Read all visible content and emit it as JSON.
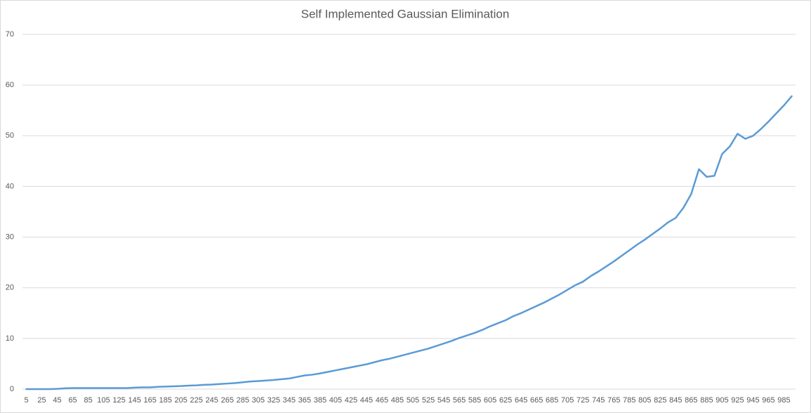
{
  "chart_data": {
    "type": "line",
    "title": "Self Implemented Gaussian Elimination",
    "categories": [
      5,
      null,
      25,
      null,
      45,
      null,
      65,
      null,
      85,
      null,
      105,
      null,
      125,
      null,
      145,
      null,
      165,
      null,
      185,
      null,
      205,
      null,
      225,
      null,
      245,
      null,
      265,
      null,
      285,
      null,
      305,
      null,
      325,
      null,
      345,
      null,
      365,
      null,
      385,
      null,
      405,
      null,
      425,
      null,
      445,
      null,
      465,
      null,
      485,
      null,
      505,
      null,
      525,
      null,
      545,
      null,
      565,
      null,
      585,
      null,
      605,
      null,
      625,
      null,
      645,
      null,
      665,
      null,
      685,
      null,
      705,
      null,
      725,
      null,
      745,
      null,
      765,
      null,
      785,
      null,
      805,
      null,
      825,
      null,
      845,
      null,
      865,
      null,
      885,
      null,
      905,
      null,
      925,
      null,
      945,
      null,
      965,
      null,
      985,
      null
    ],
    "series": [
      {
        "color": "#5b9bd5",
        "values": [
          0,
          0,
          0,
          0,
          0.05,
          0.15,
          0.2,
          0.2,
          0.2,
          0.2,
          0.2,
          0.2,
          0.2,
          0.2,
          0.3,
          0.35,
          0.35,
          0.45,
          0.5,
          0.55,
          0.6,
          0.7,
          0.75,
          0.85,
          0.9,
          1.0,
          1.1,
          1.2,
          1.35,
          1.5,
          1.6,
          1.7,
          1.8,
          1.95,
          2.1,
          2.4,
          2.7,
          2.85,
          3.1,
          3.4,
          3.7,
          4.0,
          4.3,
          4.6,
          4.9,
          5.3,
          5.7,
          6.0,
          6.4,
          6.8,
          7.2,
          7.6,
          8.0,
          8.5,
          9.0,
          9.5,
          10.1,
          10.6,
          11.1,
          11.7,
          12.4,
          13.0,
          13.6,
          14.4,
          15.0,
          15.7,
          16.4,
          17.1,
          17.9,
          18.7,
          19.6,
          20.5,
          21.2,
          22.3,
          23.2,
          24.2,
          25.2,
          26.3,
          27.4,
          28.5,
          29.5,
          30.6,
          31.7,
          32.9,
          33.8,
          35.8,
          38.5,
          43.4,
          41.9,
          42.1,
          46.4,
          47.9,
          50.4,
          49.4,
          50.0,
          51.3,
          52.8,
          54.4,
          56.0,
          57.8
        ]
      }
    ],
    "ylim": [
      0,
      70
    ],
    "yticks": [
      0,
      10,
      20,
      30,
      40,
      50,
      60,
      70
    ],
    "grid": true
  }
}
